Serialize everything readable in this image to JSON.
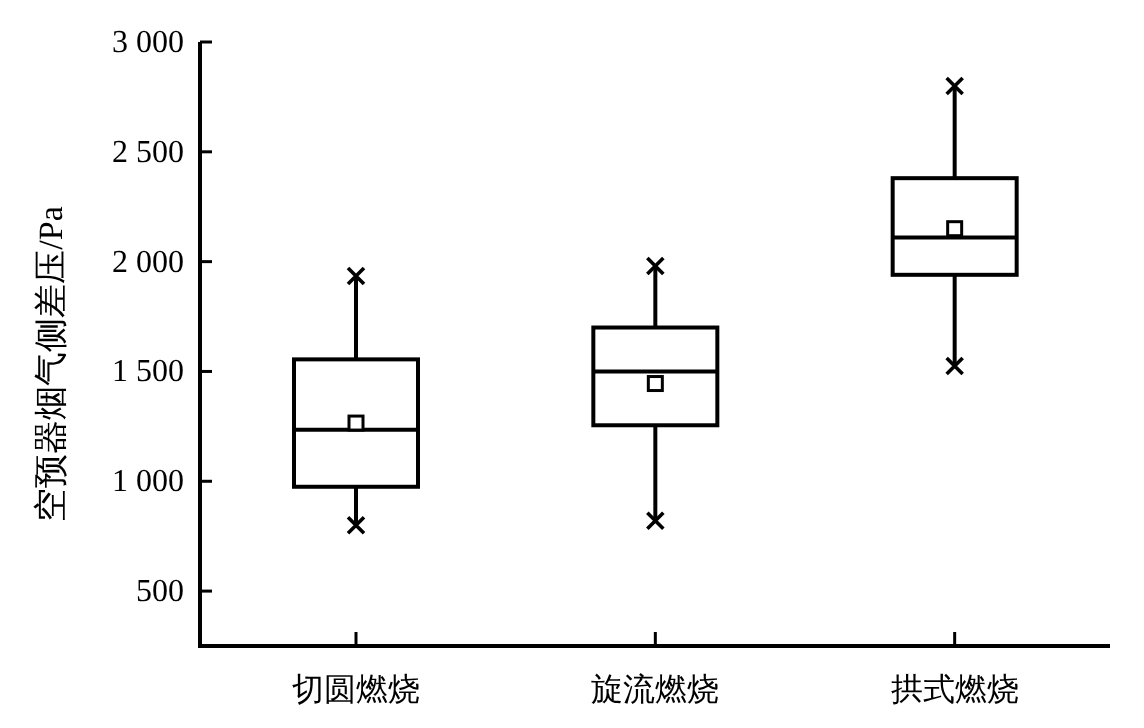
{
  "chart_data": {
    "type": "box",
    "ylabel": "空预器烟气侧差压/Pa",
    "categories": [
      "切圆燃烧",
      "旋流燃烧",
      "拱式燃烧"
    ],
    "boxes": [
      {
        "low": 800,
        "q1": 975,
        "median": 1235,
        "q3": 1555,
        "high": 1935,
        "mean": 1265
      },
      {
        "low": 820,
        "q1": 1255,
        "median": 1500,
        "q3": 1700,
        "high": 1980,
        "mean": 1445
      },
      {
        "low": 1525,
        "q1": 1940,
        "median": 2110,
        "q3": 2380,
        "high": 2800,
        "mean": 2150
      }
    ],
    "color": "#000000",
    "ylim": [
      250,
      3000
    ],
    "yticks": [
      {
        "value": 500,
        "label": "500"
      },
      {
        "value": 1000,
        "label": "1 000"
      },
      {
        "value": 1500,
        "label": "1 500"
      },
      {
        "value": 2000,
        "label": "2 000"
      },
      {
        "value": 2500,
        "label": "2 500"
      },
      {
        "value": 3000,
        "label": "3 000"
      }
    ],
    "grid": false
  }
}
